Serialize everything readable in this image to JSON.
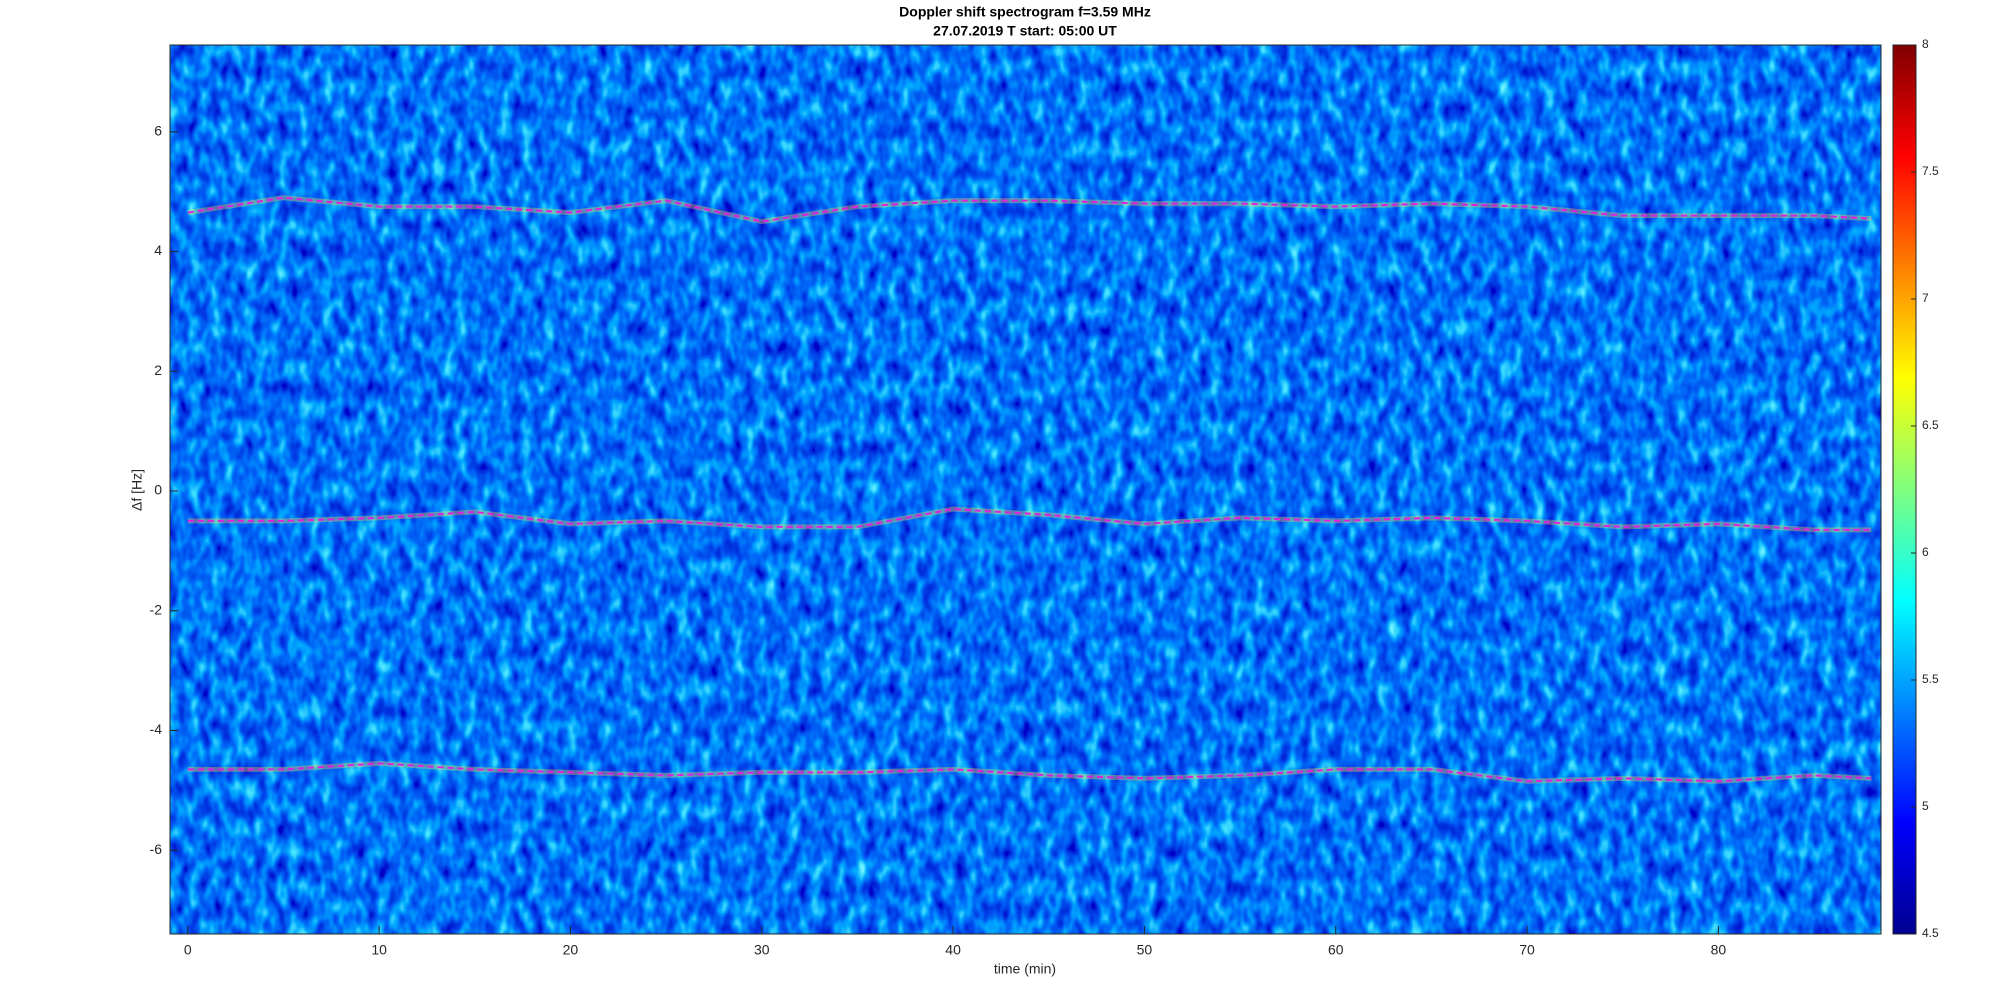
{
  "chart_data": {
    "type": "line",
    "title": "Doppler shift spectrogram f=3.59 MHz",
    "subtitle": "27.07.2019   T start: 05:00 UT",
    "x_label": "time (min)",
    "y_label": "Δf [Hz]",
    "x": [
      0,
      5,
      10,
      15,
      20,
      25,
      30,
      35,
      40,
      45,
      50,
      55,
      60,
      65,
      70,
      75,
      80,
      85,
      88
    ],
    "series": [
      {
        "color": "#e020e0",
        "values": [
          4.65,
          4.9,
          4.75,
          4.75,
          4.65,
          4.85,
          4.5,
          4.75,
          4.85,
          4.85,
          4.8,
          4.8,
          4.75,
          4.8,
          4.75,
          4.6,
          4.6,
          4.6,
          4.55
        ]
      },
      {
        "color": "#e020e0",
        "values": [
          -0.5,
          -0.5,
          -0.45,
          -0.35,
          -0.55,
          -0.5,
          -0.6,
          -0.6,
          -0.3,
          -0.4,
          -0.55,
          -0.45,
          -0.5,
          -0.45,
          -0.5,
          -0.6,
          -0.55,
          -0.65,
          -0.65
        ]
      },
      {
        "color": "#e020e0",
        "values": [
          -4.65,
          -4.65,
          -4.55,
          -4.65,
          -4.7,
          -4.75,
          -4.7,
          -4.7,
          -4.65,
          -4.75,
          -4.8,
          -4.75,
          -4.65,
          -4.65,
          -4.85,
          -4.8,
          -4.85,
          -4.75,
          -4.8
        ]
      }
    ],
    "xlim": [
      -0.93,
      88.5
    ],
    "xticks": [
      0,
      10,
      20,
      30,
      40,
      50,
      60,
      70,
      80
    ],
    "ylim": [
      -7.4,
      7.45
    ],
    "yticks": [
      -6,
      -4,
      -2,
      0,
      2,
      4,
      6
    ],
    "clim": [
      4.5,
      8
    ],
    "cticks": [
      4.5,
      5,
      5.5,
      6,
      6.5,
      7,
      7.5,
      8
    ],
    "colormap": "jet"
  }
}
